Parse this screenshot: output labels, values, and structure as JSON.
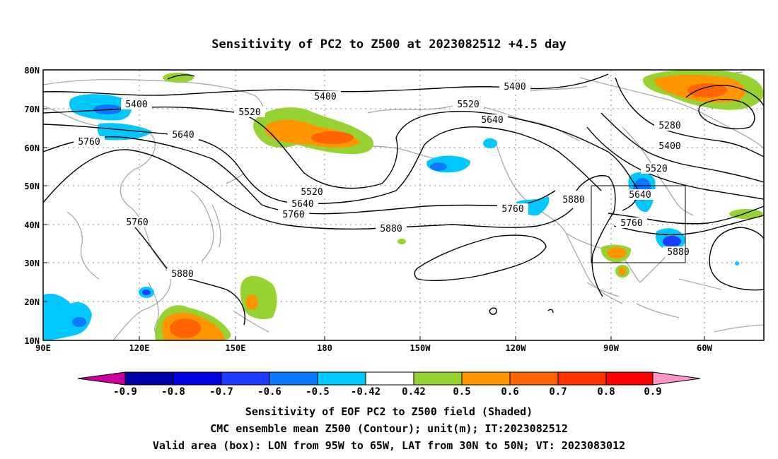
{
  "title": "Sensitivity of PC2 to Z500 at 2023082512 +4.5 day",
  "lat_labels": [
    "80N",
    "70N",
    "60N",
    "50N",
    "40N",
    "30N",
    "20N",
    "10N"
  ],
  "lon_labels": [
    "90E",
    "120E",
    "150E",
    "180",
    "150W",
    "120W",
    "90W",
    "60W"
  ],
  "contour_labels": [
    {
      "text": "5400"
    },
    {
      "text": "5400"
    },
    {
      "text": "5400"
    },
    {
      "text": "5520"
    },
    {
      "text": "5520"
    },
    {
      "text": "5640"
    },
    {
      "text": "5640"
    },
    {
      "text": "5760"
    },
    {
      "text": "5760"
    },
    {
      "text": "5520"
    },
    {
      "text": "5640"
    },
    {
      "text": "5760"
    },
    {
      "text": "5880"
    },
    {
      "text": "5760"
    },
    {
      "text": "5880"
    },
    {
      "text": "5880"
    },
    {
      "text": "5280"
    },
    {
      "text": "5400"
    },
    {
      "text": "5520"
    },
    {
      "text": "5640"
    },
    {
      "text": "5760"
    },
    {
      "text": "5880"
    }
  ],
  "colorbar": {
    "ticks": [
      "-0.9",
      "-0.8",
      "-0.7",
      "-0.6",
      "-0.5",
      "-0.42",
      "0.42",
      "0.5",
      "0.6",
      "0.7",
      "0.8",
      "0.9"
    ],
    "colors": {
      "neg_arrow": "#c8009c",
      "c1": "#0000a8",
      "c2": "#0000e0",
      "c3": "#1e3cff",
      "c4": "#0a78ff",
      "c5": "#00c8ff",
      "white": "#ffffff",
      "p1": "#96d232",
      "p2": "#ff9600",
      "p3": "#ff6400",
      "p4": "#ff3200",
      "p5": "#ff0000",
      "pos_arrow": "#ff96c8"
    }
  },
  "captions": [
    "Sensitivity of EOF PC2 to Z500 field (Shaded)",
    "CMC ensemble mean Z500 (Contour); unit(m); IT:2023082512",
    "Valid area (box): LON from 95W to 65W, LAT from 30N to 50N; VT: 2023083012"
  ]
}
